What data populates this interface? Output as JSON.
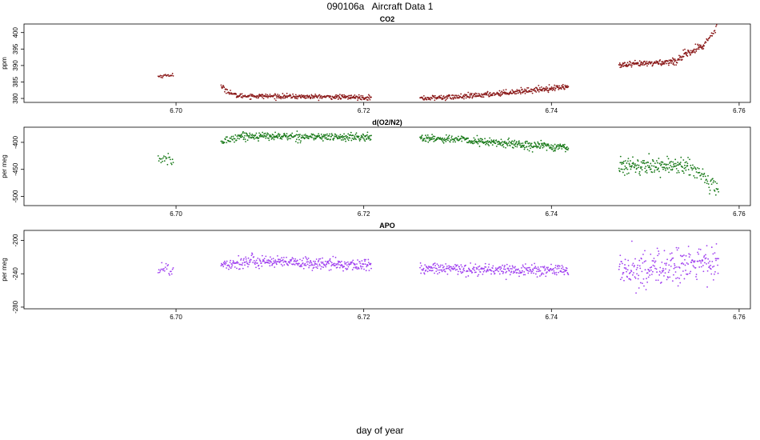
{
  "figure": {
    "title": "090106a   Aircraft Data 1",
    "xlabel": "day of year"
  },
  "chart_data": [
    {
      "type": "scatter",
      "title": "CO2",
      "ylabel": "ppm",
      "color": "#8b1a1a",
      "xlim": [
        6.6838,
        6.7612
      ],
      "ylim": [
        378.8,
        402.6
      ],
      "xticks": [
        6.7,
        6.72,
        6.74,
        6.76
      ],
      "xtick_labels": [
        "6.70",
        "6.72",
        "6.74",
        "6.76"
      ],
      "yticks": [
        380,
        385,
        390,
        395,
        400
      ],
      "ytick_labels": [
        "380",
        "385",
        "390",
        "395",
        "400"
      ],
      "segments": [
        {
          "x_start": 6.6981,
          "x_end": 6.6997,
          "y_start": 386.7,
          "y_end": 387.2,
          "noise": 0.25,
          "count": 22
        },
        {
          "x_start": 6.7048,
          "x_end": 6.7064,
          "y_start": 383.5,
          "y_end": 380.8,
          "noise": 0.4,
          "count": 30
        },
        {
          "x_start": 6.7064,
          "x_end": 6.7208,
          "y_start": 380.8,
          "y_end": 380.3,
          "noise": 0.35,
          "count": 320
        },
        {
          "x_start": 6.726,
          "x_end": 6.731,
          "y_start": 380.0,
          "y_end": 380.6,
          "noise": 0.4,
          "count": 110
        },
        {
          "x_start": 6.731,
          "x_end": 6.7418,
          "y_start": 380.6,
          "y_end": 383.6,
          "noise": 0.4,
          "count": 250
        },
        {
          "x_start": 6.7472,
          "x_end": 6.753,
          "y_start": 390.0,
          "y_end": 391.2,
          "noise": 0.45,
          "count": 140
        },
        {
          "x_start": 6.753,
          "x_end": 6.7562,
          "y_start": 391.2,
          "y_end": 396.0,
          "noise": 0.7,
          "count": 80
        },
        {
          "x_start": 6.7562,
          "x_end": 6.7576,
          "y_start": 396.0,
          "y_end": 401.5,
          "noise": 0.5,
          "count": 22
        }
      ]
    },
    {
      "type": "scatter",
      "title": "d(O2/N2)",
      "ylabel": "per meg",
      "color": "#1a7a1a",
      "xlim": [
        6.6838,
        6.7612
      ],
      "ylim": [
        -517,
        -372
      ],
      "xticks": [
        6.7,
        6.72,
        6.74,
        6.76
      ],
      "xtick_labels": [
        "6.70",
        "6.72",
        "6.74",
        "6.76"
      ],
      "yticks": [
        -500,
        -450,
        -400
      ],
      "ytick_labels": [
        "-500",
        "-450",
        "-400"
      ],
      "segments": [
        {
          "x_start": 6.6981,
          "x_end": 6.6997,
          "y_start": -430,
          "y_end": -435,
          "noise": 5,
          "count": 22
        },
        {
          "x_start": 6.7048,
          "x_end": 6.7068,
          "y_start": -400,
          "y_end": -388,
          "noise": 4,
          "count": 35
        },
        {
          "x_start": 6.7068,
          "x_end": 6.7208,
          "y_start": -388,
          "y_end": -391,
          "noise": 3.5,
          "count": 320
        },
        {
          "x_start": 6.726,
          "x_end": 6.731,
          "y_start": -392,
          "y_end": -395,
          "noise": 3.5,
          "count": 110
        },
        {
          "x_start": 6.731,
          "x_end": 6.7418,
          "y_start": -397,
          "y_end": -410,
          "noise": 4,
          "count": 250
        },
        {
          "x_start": 6.7472,
          "x_end": 6.7545,
          "y_start": -444,
          "y_end": -442,
          "noise": 7,
          "count": 170
        },
        {
          "x_start": 6.7545,
          "x_end": 6.7578,
          "y_start": -445,
          "y_end": -490,
          "noise": 9,
          "count": 60
        }
      ]
    },
    {
      "type": "scatter",
      "title": "APO",
      "ylabel": "per meg",
      "color": "#a040f0",
      "xlim": [
        6.6838,
        6.7612
      ],
      "ylim": [
        -282,
        -188
      ],
      "xticks": [
        6.7,
        6.72,
        6.74,
        6.76
      ],
      "xtick_labels": [
        "6.70",
        "6.72",
        "6.74",
        "6.76"
      ],
      "yticks": [
        -280,
        -240,
        -200
      ],
      "ytick_labels": [
        "-280",
        "-240",
        "-200"
      ],
      "segments": [
        {
          "x_start": 6.6981,
          "x_end": 6.6997,
          "y_start": -233,
          "y_end": -236,
          "noise": 5,
          "count": 22
        },
        {
          "x_start": 6.7048,
          "x_end": 6.71,
          "y_start": -228,
          "y_end": -224,
          "noise": 4,
          "count": 110
        },
        {
          "x_start": 6.71,
          "x_end": 6.7208,
          "y_start": -226,
          "y_end": -230,
          "noise": 3.5,
          "count": 240
        },
        {
          "x_start": 6.726,
          "x_end": 6.7418,
          "y_start": -234,
          "y_end": -236,
          "noise": 3.5,
          "count": 330
        },
        {
          "x_start": 6.7472,
          "x_end": 6.7578,
          "y_start": -238,
          "y_end": -226,
          "noise": 11,
          "count": 240
        }
      ]
    }
  ]
}
